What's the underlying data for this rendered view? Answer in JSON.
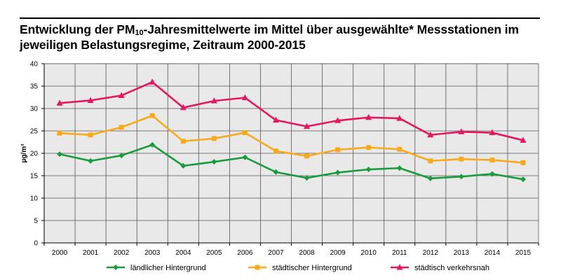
{
  "header": {
    "title_part1": "Entwicklung der PM",
    "title_sub": "10",
    "title_part2": "-Jahresmittelwerte im Mittel über ausgewählte* Messstationen im",
    "title_line2": "jeweiligen Belastungsregime, Zeitraum 2000-2015"
  },
  "chart_data": {
    "type": "line",
    "title": "Entwicklung der PM10-Jahresmittelwerte im Mittel über ausgewählte* Messstationen im jeweiligen Belastungsregime, Zeitraum 2000-2015",
    "xlabel": "",
    "ylabel": "µg/m³",
    "ylim": [
      0,
      40
    ],
    "yticks": [
      0,
      5,
      10,
      15,
      20,
      25,
      30,
      35,
      40
    ],
    "grid": true,
    "legend_position": "bottom",
    "categories": [
      "2000",
      "2001",
      "2002",
      "2003",
      "2004",
      "2005",
      "2006",
      "2007",
      "2008",
      "2009",
      "2010",
      "2011",
      "2012",
      "2013",
      "2014",
      "2015"
    ],
    "series": [
      {
        "name": "ländlicher Hintergrund",
        "color": "#1a9b3c",
        "marker": "diamond",
        "values": [
          19.8,
          18.3,
          19.5,
          21.9,
          17.2,
          18.1,
          19.1,
          15.8,
          14.5,
          15.7,
          16.4,
          16.7,
          14.4,
          14.8,
          15.4,
          14.2
        ]
      },
      {
        "name": "städtischer Hintergrund",
        "color": "#f7ab1c",
        "marker": "square",
        "values": [
          24.5,
          24.1,
          25.8,
          28.4,
          22.7,
          23.3,
          24.6,
          20.5,
          19.4,
          20.8,
          21.3,
          20.9,
          18.3,
          18.7,
          18.5,
          17.9
        ]
      },
      {
        "name": "städtisch verkehrsnah",
        "color": "#e5185f",
        "marker": "triangle",
        "values": [
          31.2,
          31.8,
          32.9,
          35.9,
          30.2,
          31.7,
          32.4,
          27.4,
          26.0,
          27.3,
          28.0,
          27.8,
          24.1,
          24.8,
          24.6,
          22.9
        ]
      }
    ]
  }
}
